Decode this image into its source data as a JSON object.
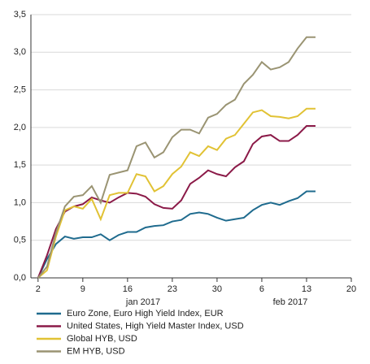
{
  "chart_data": {
    "type": "line",
    "x": [
      0,
      1,
      2,
      3,
      4,
      5,
      6,
      7,
      8,
      9,
      10,
      11,
      12,
      13,
      14,
      15,
      16,
      17,
      18,
      19,
      20,
      21,
      22,
      23,
      24,
      25,
      26,
      27,
      28,
      29,
      30,
      31
    ],
    "series": [
      {
        "name": "Euro Zone, Euro High Yield Index, EUR",
        "color": "#1f6b8e",
        "values": [
          0,
          0.25,
          0.45,
          0.55,
          0.52,
          0.54,
          0.54,
          0.58,
          0.5,
          0.57,
          0.61,
          0.61,
          0.67,
          0.69,
          0.7,
          0.75,
          0.77,
          0.85,
          0.87,
          0.85,
          0.8,
          0.76,
          0.78,
          0.8,
          0.9,
          0.97,
          1.0,
          0.97,
          1.02,
          1.06,
          1.15,
          1.15
        ]
      },
      {
        "name": "United States, High Yield Master Index, USD",
        "color": "#8b1a48",
        "values": [
          0,
          0.3,
          0.65,
          0.88,
          0.95,
          0.98,
          1.07,
          1.03,
          1.0,
          1.07,
          1.13,
          1.12,
          1.08,
          0.98,
          0.93,
          0.92,
          1.03,
          1.25,
          1.33,
          1.43,
          1.38,
          1.35,
          1.47,
          1.55,
          1.78,
          1.88,
          1.9,
          1.82,
          1.82,
          1.9,
          2.02,
          2.02
        ]
      },
      {
        "name": "Global HYB, USD",
        "color": "#e1c234",
        "values": [
          0,
          0.1,
          0.55,
          0.9,
          0.95,
          0.92,
          1.05,
          0.78,
          1.1,
          1.13,
          1.13,
          1.38,
          1.35,
          1.15,
          1.22,
          1.38,
          1.48,
          1.67,
          1.62,
          1.75,
          1.7,
          1.85,
          1.9,
          2.05,
          2.2,
          2.23,
          2.15,
          2.14,
          2.12,
          2.15,
          2.25,
          2.25
        ]
      },
      {
        "name": "EM HYB, USD",
        "color": "#9a9473",
        "values": [
          0,
          0.15,
          0.6,
          0.95,
          1.08,
          1.1,
          1.22,
          1.0,
          1.37,
          1.4,
          1.43,
          1.75,
          1.8,
          1.6,
          1.67,
          1.87,
          1.97,
          1.97,
          1.92,
          2.13,
          2.18,
          2.3,
          2.37,
          2.58,
          2.7,
          2.87,
          2.77,
          2.8,
          2.87,
          3.05,
          3.2,
          3.2
        ]
      }
    ],
    "xlim": [
      -0.8,
      35
    ],
    "xticks": [
      {
        "value": 0,
        "label": "2"
      },
      {
        "value": 5,
        "label": "9"
      },
      {
        "value": 10,
        "label": "16"
      },
      {
        "value": 15,
        "label": "23"
      },
      {
        "value": 20,
        "label": "30"
      },
      {
        "value": 25,
        "label": "6"
      },
      {
        "value": 30,
        "label": "13"
      },
      {
        "value": 35,
        "label": "20"
      }
    ],
    "month_labels": [
      "jan 2017",
      "feb 2017"
    ],
    "ylim": [
      0,
      3.5
    ],
    "yticks": [
      {
        "value": 0,
        "label": "0,0"
      },
      {
        "value": 0.5,
        "label": "0,5"
      },
      {
        "value": 1,
        "label": "1,0"
      },
      {
        "value": 1.5,
        "label": "1,5"
      },
      {
        "value": 2,
        "label": "2,0"
      },
      {
        "value": 2.5,
        "label": "2,5"
      },
      {
        "value": 3,
        "label": "3,0"
      },
      {
        "value": 3.5,
        "label": "3,5"
      }
    ],
    "grid": true
  }
}
